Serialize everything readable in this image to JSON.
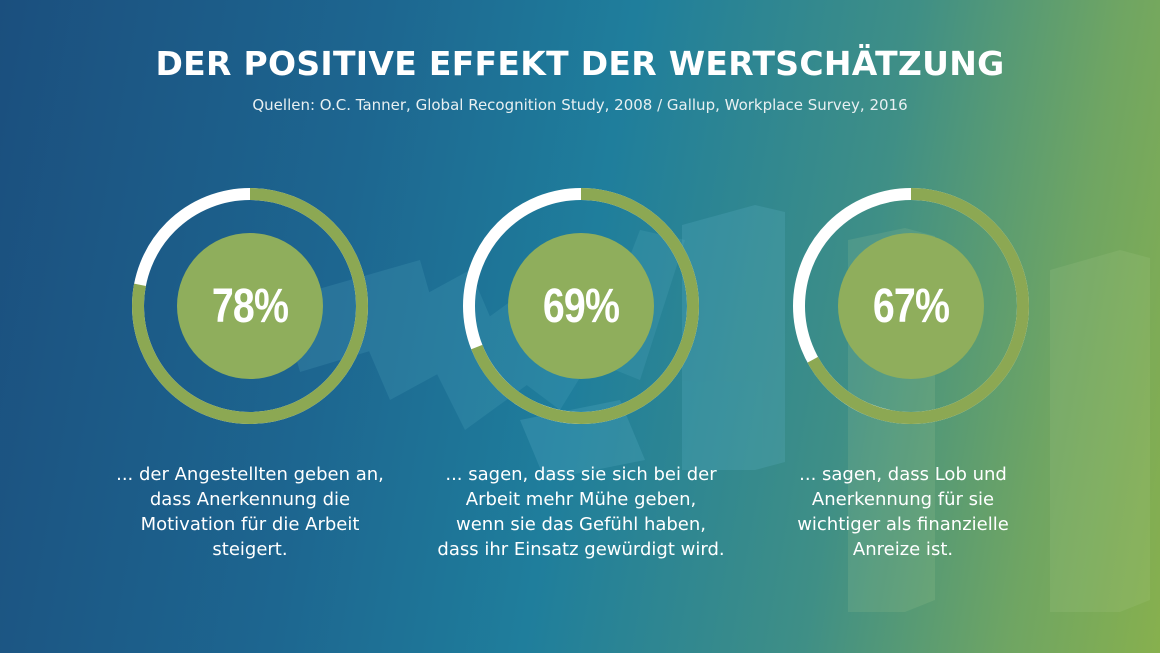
{
  "header": {
    "title": "DER POSITIVE EFFEKT DER WERTSCHÄTZUNG",
    "source": "Quellen: O.C. Tanner, Global Recognition Study, 2008 / Gallup, Workplace Survey, 2016"
  },
  "colors": {
    "ring": "#8ca853",
    "ring_rest": "#ffffff",
    "center": "#8fae5c"
  },
  "chart_data": {
    "type": "donut",
    "title": "DER POSITIVE EFFEKT DER WERTSCHÄTZUNG",
    "unit": "%",
    "items": [
      {
        "value": 78,
        "label": "78%",
        "description": "... der Angestellten geben an,\ndass Anerkennung die\nMotivation für die Arbeit\nsteigert."
      },
      {
        "value": 69,
        "label": "69%",
        "description": "... sagen, dass sie sich bei der\nArbeit mehr Mühe geben,\nwenn sie das Gefühl haben,\ndass ihr Einsatz gewürdigt wird."
      },
      {
        "value": 67,
        "label": "67%",
        "description": "... sagen, dass Lob und\nAnerkennung für sie\nwichtiger als finanzielle\nAnreize ist."
      }
    ]
  }
}
